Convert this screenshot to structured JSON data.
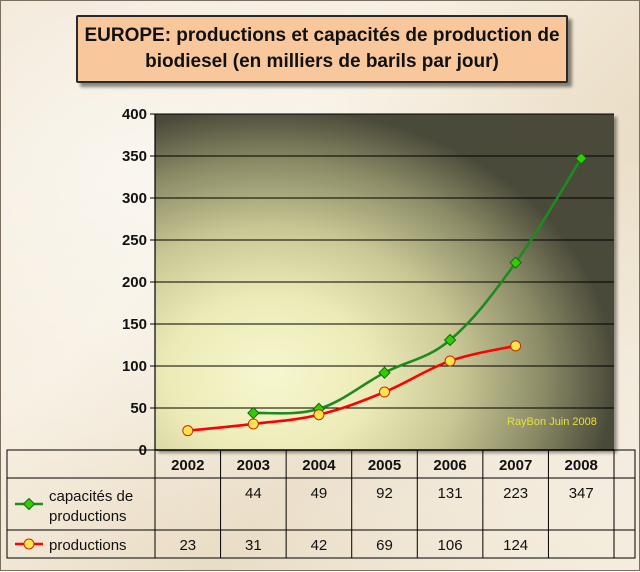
{
  "chart_data": {
    "type": "line",
    "title_line1": "EUROPE: productions et capacités de production de",
    "title_line2": "biodiesel (en milliers de barils par jour)",
    "categories": [
      "2002",
      "2003",
      "2004",
      "2005",
      "2006",
      "2007",
      "2008"
    ],
    "ylim": [
      0,
      400
    ],
    "yticks": [
      "0",
      "50",
      "100",
      "150",
      "200",
      "250",
      "300",
      "350",
      "400"
    ],
    "ytick_values": [
      0,
      50,
      100,
      150,
      200,
      250,
      300,
      350,
      400
    ],
    "series": [
      {
        "name_line1": "capacités de",
        "name_line2": "productions",
        "color": "#1f8a1f",
        "marker_color": "#33cc00",
        "marker": "diamond",
        "values": [
          null,
          44,
          49,
          92,
          131,
          223,
          347
        ],
        "labels": [
          "",
          "44",
          "49",
          "92",
          "131",
          "223",
          "347"
        ]
      },
      {
        "name_line1": "productions",
        "name_line2": "",
        "color": "#ff0000",
        "marker_color": "#ffe24d",
        "marker": "circle",
        "values": [
          23,
          31,
          42,
          69,
          106,
          124,
          null
        ],
        "labels": [
          "23",
          "31",
          "42",
          "69",
          "106",
          "124",
          ""
        ]
      }
    ],
    "watermark": "RayBon Juin 2008",
    "grid": true,
    "legend": "data-table"
  }
}
